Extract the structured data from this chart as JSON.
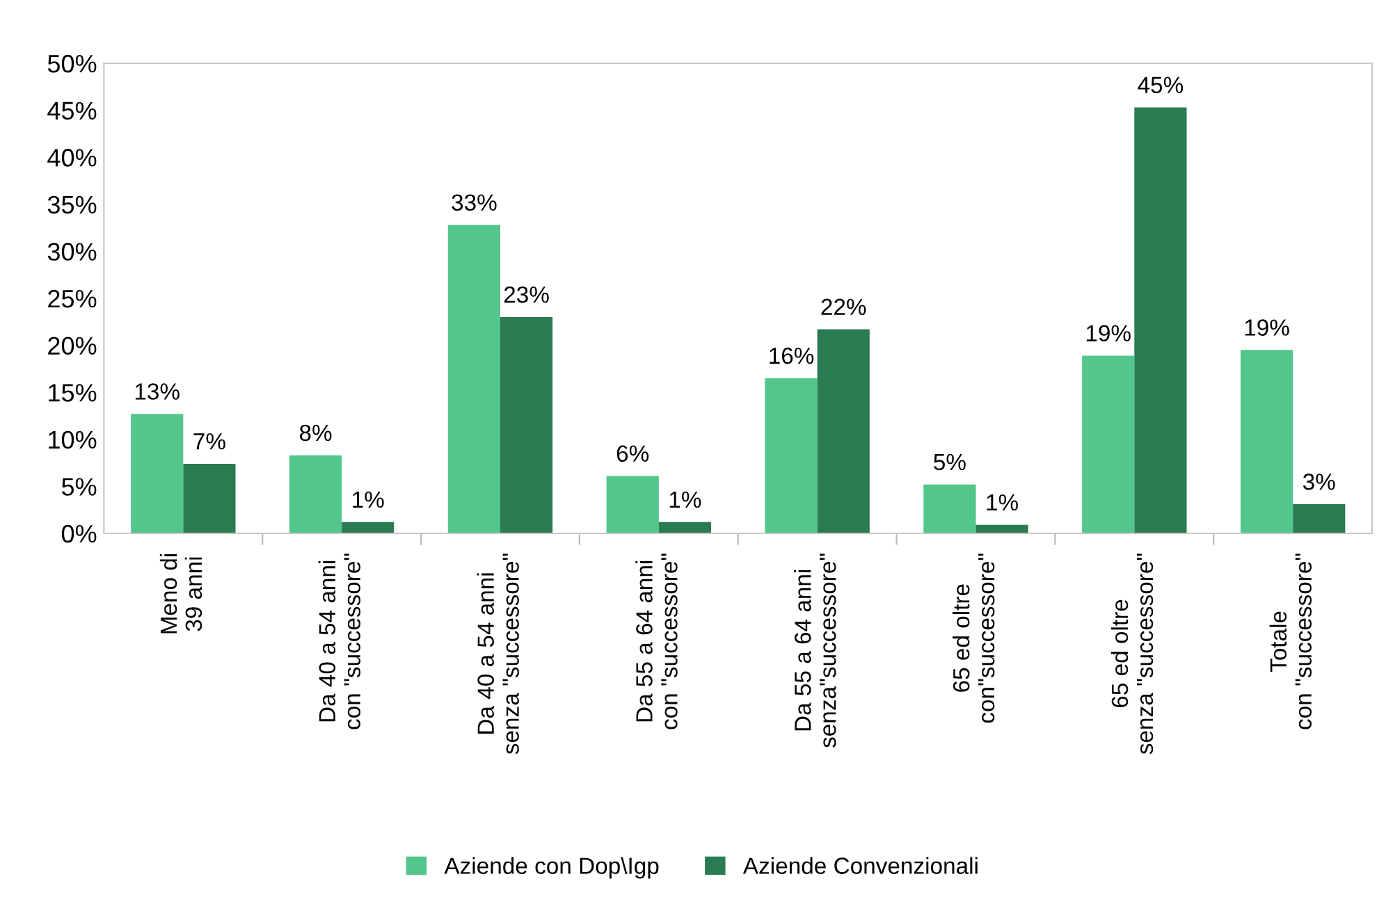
{
  "chart_data": {
    "type": "bar",
    "categories": [
      "Meno di\n39 anni",
      "Da 40 a 54 anni\ncon \"successore\"",
      "Da 40 a 54 anni\nsenza \"successore\"",
      "Da 55 a 64 anni\ncon \"successore\"",
      "Da 55 a 64 anni\nsenza\"successore\"",
      "65 ed oltre\ncon\"successore\"",
      "65 ed oltre\nsenza \"successore\"",
      "Totale\ncon \"successore\""
    ],
    "series": [
      {
        "name": "Aziende con Dop\\Igp",
        "color": "#52c68b",
        "values": [
          12.7,
          8.3,
          32.8,
          6.1,
          16.5,
          5.2,
          18.9,
          19.5
        ],
        "value_labels": [
          "13%",
          "8%",
          "33%",
          "6%",
          "16%",
          "5%",
          "19%",
          "19%"
        ]
      },
      {
        "name": "Aziende Convenzionali",
        "color": "#2a7b52",
        "values": [
          7.4,
          1.2,
          23.0,
          1.2,
          21.7,
          0.9,
          45.3,
          3.1
        ],
        "value_labels": [
          "7%",
          "1%",
          "23%",
          "1%",
          "22%",
          "1%",
          "45%",
          "3%"
        ]
      }
    ],
    "ylim": [
      0,
      50
    ],
    "yticks": [
      {
        "value": 0,
        "label": "0%"
      },
      {
        "value": 5,
        "label": "5%"
      },
      {
        "value": 10,
        "label": "10%"
      },
      {
        "value": 15,
        "label": "15%"
      },
      {
        "value": 20,
        "label": "20%"
      },
      {
        "value": 25,
        "label": "25%"
      },
      {
        "value": 30,
        "label": "30%"
      },
      {
        "value": 35,
        "label": "35%"
      },
      {
        "value": 40,
        "label": "40%"
      },
      {
        "value": 45,
        "label": "45%"
      },
      {
        "value": 50,
        "label": "50%"
      }
    ],
    "grid": false,
    "legend": "bottom"
  }
}
